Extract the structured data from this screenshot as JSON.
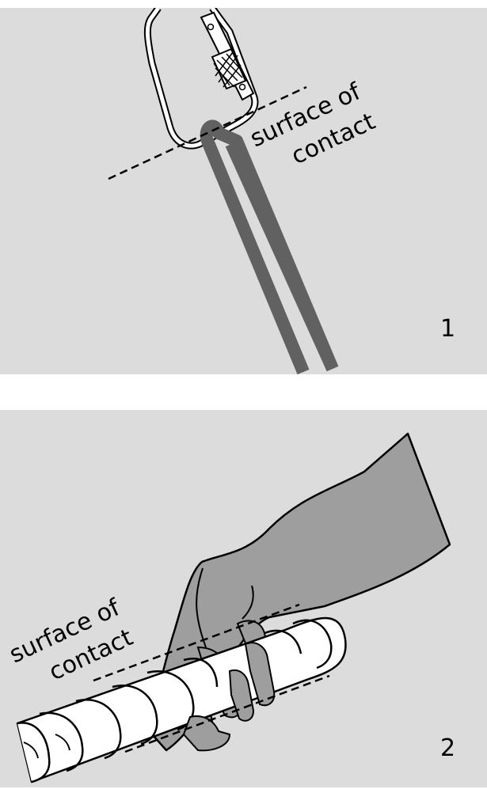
{
  "panel1": {
    "number": "1",
    "label_line1": "surface of",
    "label_line2": "contact"
  },
  "panel2": {
    "number": "2",
    "label_line1": "surface of",
    "label_line2": "contact"
  },
  "colors": {
    "background": "#dcdcdc",
    "strap": "#616161",
    "hand": "#9e9e9e",
    "rope": "#ffffff",
    "outline": "#000000"
  }
}
